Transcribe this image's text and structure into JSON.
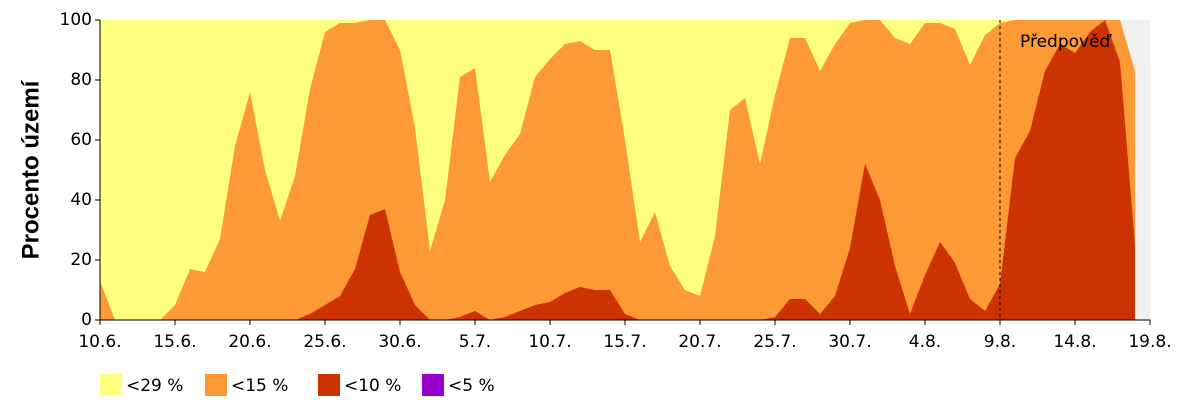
{
  "chart_data": {
    "type": "area",
    "y_label": "Procento území",
    "categories": [
      "10.6.",
      null,
      null,
      null,
      null,
      "15.6.",
      null,
      null,
      null,
      null,
      "20.6.",
      null,
      null,
      null,
      null,
      "25.6.",
      null,
      null,
      null,
      null,
      "30.6.",
      null,
      null,
      null,
      null,
      "5.7.",
      null,
      null,
      null,
      null,
      "10.7.",
      null,
      null,
      null,
      null,
      "15.7.",
      null,
      null,
      null,
      null,
      "20.7.",
      null,
      null,
      null,
      null,
      "25.7.",
      null,
      null,
      null,
      null,
      "30.7.",
      null,
      null,
      null,
      null,
      "4.8.",
      null,
      null,
      null,
      null,
      "9.8.",
      null,
      null,
      null,
      null,
      "14.8.",
      null,
      null,
      null,
      null,
      "19.8."
    ],
    "ylim": [
      0,
      100
    ],
    "yticks": [
      0,
      20,
      40,
      60,
      80,
      100
    ],
    "annotation": {
      "text": "Předpověď",
      "at": "9.8."
    },
    "series": [
      {
        "name": "<29 %",
        "color": "#ffff80",
        "values": [
          100,
          100,
          100,
          100,
          100,
          100,
          100,
          100,
          100,
          100,
          100,
          100,
          100,
          100,
          100,
          100,
          100,
          100,
          100,
          100,
          100,
          100,
          100,
          100,
          100,
          100,
          100,
          100,
          100,
          100,
          100,
          100,
          100,
          100,
          100,
          100,
          100,
          100,
          100,
          100,
          100,
          100,
          100,
          100,
          100,
          100,
          100,
          100,
          100,
          100,
          100,
          100,
          100,
          100,
          100,
          100,
          100,
          100,
          100,
          100,
          100,
          100,
          100,
          100,
          100,
          100,
          100,
          100,
          100,
          83,
          null
        ]
      },
      {
        "name": "<15 %",
        "color": "#fd9a35",
        "values": [
          13,
          0,
          0,
          0,
          0,
          5,
          17,
          16,
          27,
          58,
          76,
          50,
          33,
          48,
          77,
          96,
          99,
          99,
          100,
          100,
          90,
          64,
          23,
          40,
          81,
          84,
          46,
          55,
          62,
          81,
          87,
          92,
          93,
          90,
          90,
          60,
          26,
          36,
          18,
          10,
          8,
          28,
          70,
          74,
          52,
          75,
          94,
          94,
          83,
          92,
          99,
          100,
          100,
          94,
          92,
          99,
          99,
          97,
          85,
          95,
          99,
          100,
          100,
          100,
          100,
          100,
          100,
          100,
          100,
          83,
          null
        ]
      },
      {
        "name": "<10 %",
        "color": "#cc3300",
        "values": [
          0,
          0,
          0,
          0,
          0,
          0,
          0,
          0,
          0,
          0,
          0,
          0,
          0,
          0,
          2,
          5,
          8,
          17,
          35,
          37,
          16,
          5,
          0,
          0,
          1,
          3,
          0,
          1,
          3,
          5,
          6,
          9,
          11,
          10,
          10,
          2,
          0,
          0,
          0,
          0,
          0,
          0,
          0,
          0,
          0,
          1,
          7,
          7,
          2,
          8,
          24,
          52,
          40,
          18,
          2,
          15,
          26,
          19,
          7,
          3,
          12,
          54,
          63,
          83,
          92,
          89,
          96,
          100,
          86,
          25,
          null
        ]
      },
      {
        "name": "<5 %",
        "color": "#9900cc",
        "values": [
          0,
          0,
          0,
          0,
          0,
          0,
          0,
          0,
          0,
          0,
          0,
          0,
          0,
          0,
          0,
          0,
          0,
          0,
          0,
          0,
          0,
          0,
          0,
          0,
          0,
          0,
          0,
          0,
          0,
          0,
          0,
          0,
          0,
          0,
          0,
          0,
          0,
          0,
          0,
          0,
          0,
          0,
          0,
          0,
          0,
          0,
          0,
          0,
          0,
          0,
          0,
          0,
          0,
          0,
          0,
          0,
          0,
          0,
          0,
          0,
          0,
          0,
          0,
          0,
          0,
          0,
          0,
          0,
          0,
          0,
          null
        ]
      }
    ]
  }
}
